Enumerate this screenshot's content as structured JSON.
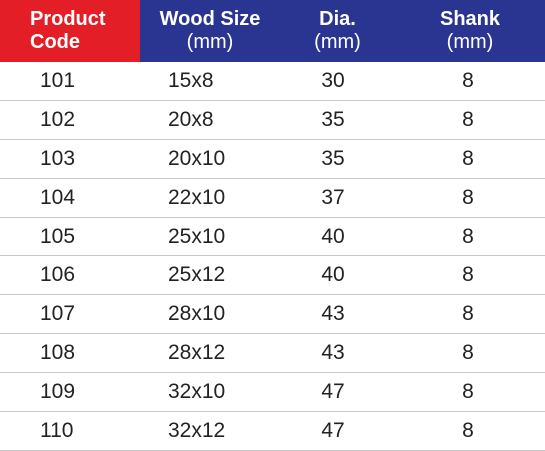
{
  "table": {
    "header": [
      {
        "lines": [
          "Product",
          "Code"
        ]
      },
      {
        "lines": [
          "Wood Size",
          "(mm)"
        ]
      },
      {
        "lines": [
          "Dia.",
          "(mm)"
        ]
      },
      {
        "lines": [
          "Shank",
          "(mm)"
        ]
      }
    ],
    "rows": [
      [
        101,
        "15x8",
        30,
        8
      ],
      [
        102,
        "20x8",
        35,
        8
      ],
      [
        103,
        "20x10",
        35,
        8
      ],
      [
        104,
        "22x10",
        37,
        8
      ],
      [
        105,
        "25x10",
        40,
        8
      ],
      [
        106,
        "25x12",
        40,
        8
      ],
      [
        107,
        "28x10",
        43,
        8
      ],
      [
        108,
        "28x12",
        43,
        8
      ],
      [
        109,
        "32x10",
        47,
        8
      ],
      [
        110,
        "32x12",
        47,
        8
      ]
    ]
  }
}
